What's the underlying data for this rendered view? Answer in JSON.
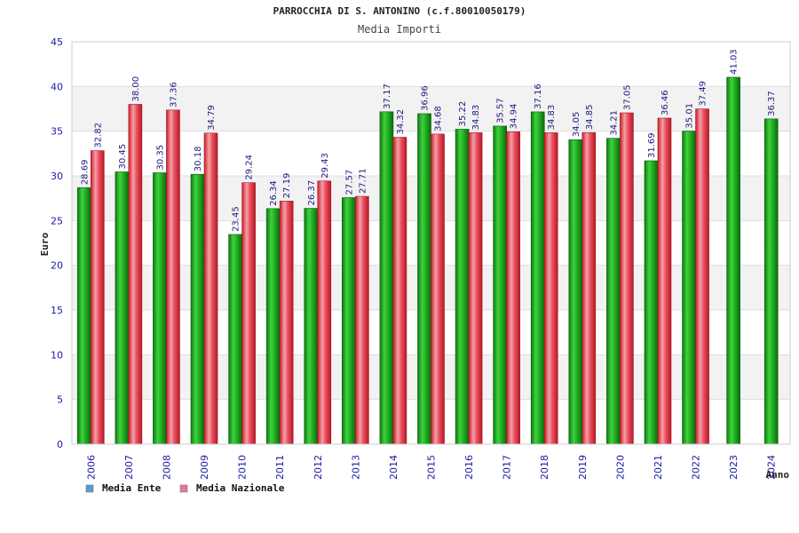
{
  "chart_data": {
    "type": "bar",
    "title": "PARROCCHIA DI S. ANTONINO (c.f.80010050179)",
    "subtitle": "Media Importi",
    "ylabel": "Euro",
    "xlabel": "Anno",
    "ylim": [
      0,
      45
    ],
    "yticks": [
      0,
      5,
      10,
      15,
      20,
      25,
      30,
      35,
      40,
      45
    ],
    "categories": [
      "2006",
      "2007",
      "2008",
      "2009",
      "2010",
      "2011",
      "2012",
      "2013",
      "2014",
      "2015",
      "2016",
      "2017",
      "2018",
      "2019",
      "2020",
      "2021",
      "2022",
      "2023",
      "2024"
    ],
    "series": [
      {
        "name": "Media Ente",
        "color": "#1fa01f",
        "legend_color": "#5b9bd5",
        "values": [
          28.69,
          30.45,
          30.35,
          30.18,
          23.45,
          26.34,
          26.37,
          27.57,
          37.17,
          36.96,
          35.22,
          35.57,
          37.16,
          34.05,
          34.21,
          31.69,
          35.01,
          41.03,
          36.37
        ],
        "labels": [
          "28.69",
          "30.45",
          "30.35",
          "30.18",
          "23.45",
          "26.34",
          "26.37",
          "27.57",
          "37.17",
          "36.96",
          "35.22",
          "35.57",
          "37.16",
          "34.05",
          "34.21",
          "31.69",
          "35.01",
          "41.03",
          "36.37"
        ]
      },
      {
        "name": "Media Nazionale",
        "color": "#e0303a",
        "legend_color": "#e07aa8",
        "values": [
          32.82,
          38.0,
          37.36,
          34.79,
          29.24,
          27.19,
          29.43,
          27.71,
          34.32,
          34.68,
          34.83,
          34.94,
          34.83,
          34.85,
          37.05,
          36.46,
          37.49,
          null,
          null
        ],
        "labels": [
          "32.82",
          "38.00",
          "37.36",
          "34.79",
          "29.24",
          "27.19",
          "29.43",
          "27.71",
          "34.32",
          "34.68",
          "34.83",
          "34.94",
          "34.83",
          "34.85",
          "37.05",
          "36.46",
          "37.49",
          null,
          null
        ]
      }
    ],
    "grid": true,
    "legend_position": "bottom-left"
  }
}
